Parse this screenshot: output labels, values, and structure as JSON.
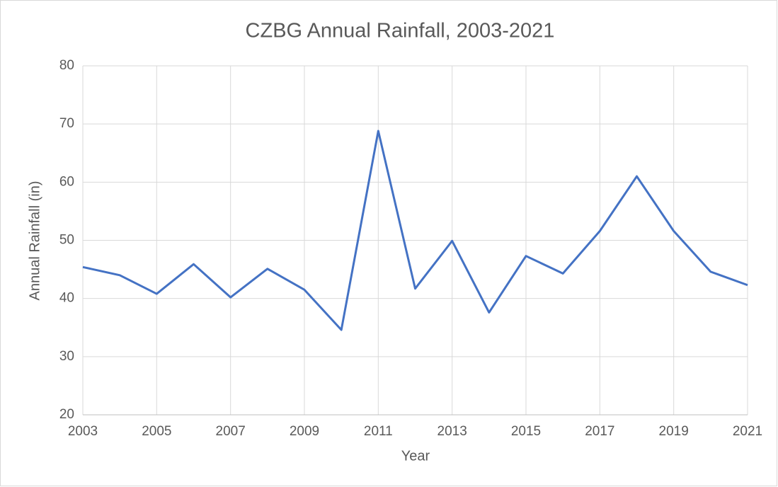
{
  "chart_data": {
    "type": "line",
    "title": "CZBG Annual Rainfall, 2003-2021",
    "x_label": "Year",
    "y_label": "Annual Rainfall (in)",
    "x": [
      2003,
      2004,
      2005,
      2006,
      2007,
      2008,
      2009,
      2010,
      2011,
      2012,
      2013,
      2014,
      2015,
      2016,
      2017,
      2018,
      2019,
      2020,
      2021
    ],
    "series": [
      {
        "name": "Annual Rainfall",
        "color": "#4472c4",
        "values": [
          45.4,
          44.0,
          40.8,
          45.9,
          40.2,
          45.1,
          41.5,
          34.6,
          68.8,
          41.7,
          49.9,
          37.6,
          47.3,
          44.3,
          51.6,
          61.0,
          51.6,
          44.6,
          42.3
        ]
      }
    ],
    "xlim": [
      2003,
      2021
    ],
    "xticks": [
      2003,
      2005,
      2007,
      2009,
      2011,
      2013,
      2015,
      2017,
      2019,
      2021
    ],
    "ylim": [
      20,
      80
    ],
    "yticks": [
      20,
      30,
      40,
      50,
      60,
      70,
      80
    ],
    "grid": true
  }
}
